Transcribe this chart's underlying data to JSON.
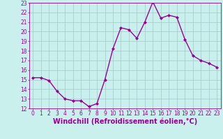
{
  "x": [
    0,
    1,
    2,
    3,
    4,
    5,
    6,
    7,
    8,
    9,
    10,
    11,
    12,
    13,
    14,
    15,
    16,
    17,
    18,
    19,
    20,
    21,
    22,
    23
  ],
  "y": [
    15.2,
    15.2,
    14.9,
    13.8,
    13.0,
    12.8,
    12.8,
    12.2,
    12.5,
    15.0,
    18.2,
    20.4,
    20.2,
    19.3,
    21.0,
    23.1,
    21.4,
    21.7,
    21.5,
    19.2,
    17.5,
    17.0,
    16.7,
    16.3
  ],
  "line_color": "#990099",
  "marker": "D",
  "marker_size": 2.0,
  "bg_color": "#caf0ee",
  "grid_color": "#a0c8c8",
  "xlabel": "Windchill (Refroidissement éolien,°C)",
  "xlim": [
    -0.5,
    23.5
  ],
  "ylim": [
    12,
    23
  ],
  "yticks": [
    12,
    13,
    14,
    15,
    16,
    17,
    18,
    19,
    20,
    21,
    22,
    23
  ],
  "xticks": [
    0,
    1,
    2,
    3,
    4,
    5,
    6,
    7,
    8,
    9,
    10,
    11,
    12,
    13,
    14,
    15,
    16,
    17,
    18,
    19,
    20,
    21,
    22,
    23
  ],
  "tick_label_fontsize": 5.5,
  "xlabel_fontsize": 7,
  "line_width": 1.0
}
